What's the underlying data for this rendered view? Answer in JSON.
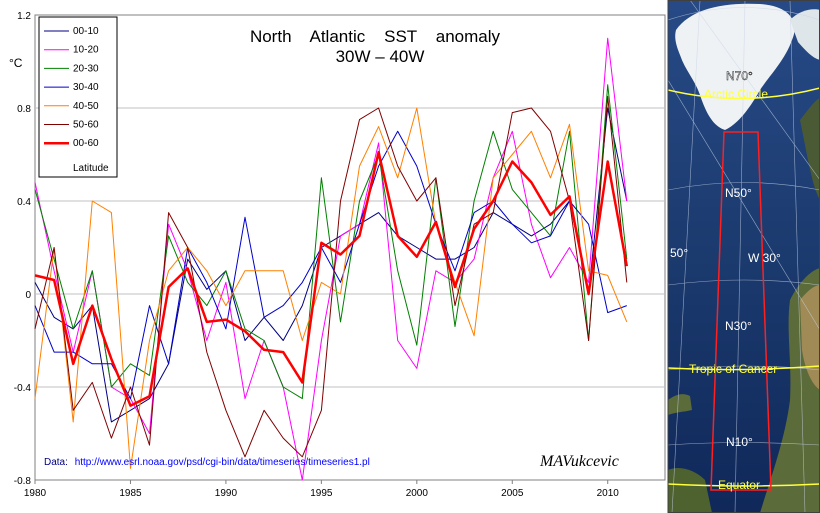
{
  "chart_data": {
    "type": "line",
    "title": "North    Atlantic    SST    anomaly",
    "subtitle": "30W – 40W",
    "ylabel": "°C",
    "xlabel": "",
    "xlim": [
      1980,
      2013
    ],
    "ylim": [
      -0.8,
      1.2
    ],
    "xticks": [
      1980,
      1985,
      1990,
      1995,
      2000,
      2005,
      2010
    ],
    "yticks": [
      -0.8,
      -0.4,
      0,
      0.4,
      0.8,
      1.2
    ],
    "ytick_labels": [
      "-0.8",
      "-0.4",
      "0",
      "0.4",
      "0.8",
      "1.2"
    ],
    "grid": "horizontal",
    "legend_position": "top-left",
    "x": [
      1980,
      1981,
      1982,
      1983,
      1984,
      1985,
      1986,
      1987,
      1988,
      1989,
      1990,
      1991,
      1992,
      1993,
      1994,
      1995,
      1996,
      1997,
      1998,
      1999,
      2000,
      2001,
      2002,
      2003,
      2004,
      2005,
      2006,
      2007,
      2008,
      2009,
      2010,
      2011
    ],
    "series": [
      {
        "name": "00-10",
        "color": "#000080",
        "width": 1,
        "values": [
          0.05,
          -0.1,
          -0.15,
          -0.05,
          -0.55,
          -0.5,
          -0.45,
          -0.3,
          0.15,
          0.02,
          0.1,
          -0.2,
          -0.1,
          -0.2,
          -0.05,
          0.2,
          0.25,
          0.3,
          0.35,
          0.25,
          0.2,
          0.15,
          0.15,
          0.2,
          0.35,
          0.3,
          0.25,
          0.3,
          0.4,
          0.0,
          0.8,
          0.4
        ]
      },
      {
        "name": "10-20",
        "color": "#ff00ff",
        "width": 1,
        "values": [
          0.48,
          0.1,
          -0.25,
          0.1,
          -0.4,
          -0.45,
          -0.6,
          0.3,
          0.1,
          -0.2,
          0.05,
          -0.45,
          -0.2,
          -0.4,
          -0.8,
          -0.2,
          0.25,
          0.3,
          0.65,
          -0.2,
          -0.32,
          0.1,
          0.05,
          0.15,
          0.5,
          0.7,
          0.3,
          0.07,
          0.2,
          0.05,
          1.1,
          0.4
        ]
      },
      {
        "name": "20-30",
        "color": "#008000",
        "width": 1,
        "values": [
          0.45,
          0.15,
          -0.15,
          0.1,
          -0.4,
          -0.3,
          -0.35,
          0.25,
          0.05,
          -0.05,
          0.1,
          -0.15,
          -0.2,
          -0.4,
          -0.45,
          0.5,
          -0.12,
          0.4,
          0.6,
          0.1,
          -0.22,
          0.5,
          -0.14,
          0.4,
          0.7,
          0.45,
          0.35,
          0.25,
          0.7,
          -0.2,
          0.9,
          0.15
        ]
      },
      {
        "name": "30-40",
        "color": "#0000cc",
        "width": 1,
        "values": [
          -0.05,
          -0.25,
          -0.25,
          -0.3,
          -0.3,
          -0.45,
          -0.05,
          -0.3,
          0.2,
          0.05,
          -0.15,
          0.33,
          -0.1,
          -0.05,
          0.05,
          0.2,
          0.05,
          0.3,
          0.55,
          0.7,
          0.55,
          0.3,
          0.1,
          0.35,
          0.4,
          0.3,
          0.22,
          0.25,
          0.4,
          0.3,
          -0.08,
          -0.05
        ]
      },
      {
        "name": "40-50",
        "color": "#ff8000",
        "width": 1,
        "values": [
          -0.45,
          0.2,
          -0.55,
          0.4,
          0.35,
          -0.75,
          -0.2,
          0.1,
          0.2,
          0.1,
          -0.05,
          0.1,
          0.1,
          0.1,
          -0.2,
          0.05,
          0.0,
          0.55,
          0.72,
          0.5,
          0.8,
          0.3,
          0.05,
          -0.18,
          0.5,
          0.6,
          0.7,
          0.5,
          0.73,
          0.1,
          0.08,
          -0.12
        ]
      },
      {
        "name": "50-60",
        "color": "#800000",
        "width": 1,
        "values": [
          -0.15,
          0.2,
          -0.5,
          -0.38,
          -0.62,
          -0.4,
          -0.65,
          0.35,
          0.2,
          -0.25,
          -0.5,
          -0.7,
          -0.5,
          -0.62,
          -0.7,
          -0.5,
          0.4,
          0.75,
          0.8,
          0.55,
          0.4,
          0.5,
          -0.05,
          0.3,
          0.35,
          0.78,
          0.8,
          0.7,
          0.4,
          -0.2,
          0.85,
          0.05
        ]
      },
      {
        "name": "00-60",
        "color": "#ff0000",
        "width": 2.5,
        "values": [
          0.08,
          0.06,
          -0.3,
          -0.05,
          -0.28,
          -0.48,
          -0.44,
          0.03,
          0.11,
          -0.12,
          -0.11,
          -0.16,
          -0.24,
          -0.25,
          -0.38,
          0.22,
          0.17,
          0.25,
          0.61,
          0.25,
          0.16,
          0.31,
          0.03,
          0.28,
          0.4,
          0.57,
          0.48,
          0.34,
          0.42,
          0.0,
          0.57,
          0.12
        ]
      }
    ],
    "legend_extra": "Latitude",
    "source_label": "Data:",
    "source_url": "http://www.esrl.noaa.gov/psd/cgi-bin/data/timeseries/timeseries1.pl",
    "signature": "MAVukcevic"
  },
  "map": {
    "labels": {
      "n70": "N70°",
      "arctic": "Arctic Circle",
      "n50": "N50°",
      "w50": "50°",
      "w30": "W 30°",
      "n30": "N30°",
      "tropic": "Tropic of Cancer",
      "n10": "N10°",
      "equator": "Equator"
    }
  },
  "colors": {
    "ocean": "#1b3a6e",
    "ice": "#f0f4f8",
    "land": "#5c6b3a",
    "box": "#ff1a1a",
    "grid": "#c0c0c0"
  }
}
